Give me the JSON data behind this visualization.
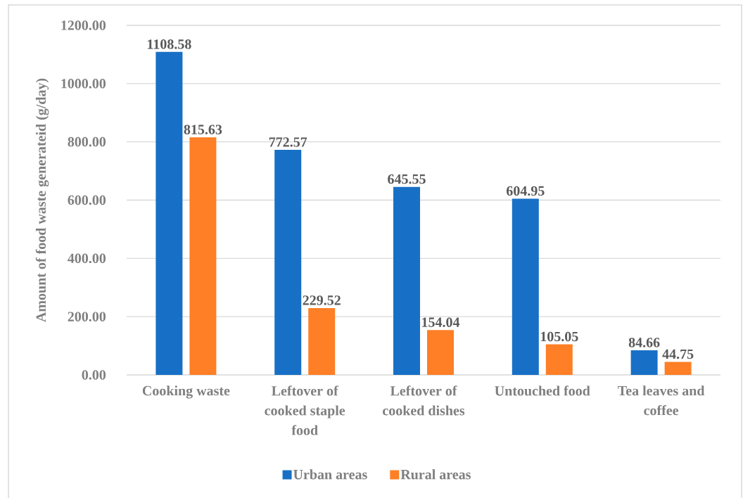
{
  "chart_data": {
    "type": "bar",
    "ylabel": "Amount of food waste generateid (g/day)",
    "categories": [
      "Cooking waste",
      "Leftover of cooked staple food",
      "Leftover of cooked dishes",
      "Untouched food",
      "Tea leaves and coffee"
    ],
    "series": [
      {
        "name": "Urban areas",
        "color": "#1870c6",
        "values": [
          1108.58,
          772.57,
          645.55,
          604.95,
          84.66
        ]
      },
      {
        "name": "Rural areas",
        "color": "#fe7f26",
        "values": [
          815.63,
          229.52,
          154.04,
          105.05,
          44.75
        ]
      }
    ],
    "ylim": [
      0,
      1200
    ],
    "yticks": [
      {
        "value": 0,
        "label": "0.00"
      },
      {
        "value": 200,
        "label": "200.00"
      },
      {
        "value": 400,
        "label": "400.00"
      },
      {
        "value": 600,
        "label": "600.00"
      },
      {
        "value": 800,
        "label": "800.00"
      },
      {
        "value": 1000,
        "label": "1000.00"
      },
      {
        "value": 1200,
        "label": "1200.00"
      }
    ],
    "grid": "y",
    "data_labels": true,
    "legend": "bottom"
  }
}
